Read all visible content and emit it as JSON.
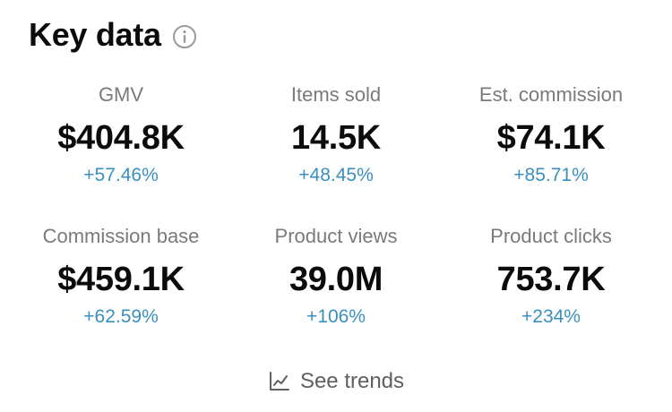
{
  "header": {
    "title": "Key data",
    "info_icon": "info-icon"
  },
  "metrics": [
    {
      "label": "GMV",
      "value": "$404.8K",
      "change": "+57.46%"
    },
    {
      "label": "Items sold",
      "value": "14.5K",
      "change": "+48.45%"
    },
    {
      "label": "Est. commission",
      "value": "$74.1K",
      "change": "+85.71%"
    },
    {
      "label": "Commission base",
      "value": "$459.1K",
      "change": "+62.59%"
    },
    {
      "label": "Product views",
      "value": "39.0M",
      "change": "+106%"
    },
    {
      "label": "Product clicks",
      "value": "753.7K",
      "change": "+234%"
    }
  ],
  "trends": {
    "label": "See trends",
    "icon": "line-chart-icon"
  },
  "colors": {
    "title": "#0b0b0b",
    "label": "#7a7a7a",
    "value": "#0b0b0b",
    "positive_change": "#3a8fbf",
    "muted_icon": "#9a9a9a",
    "link_text": "#5f5f5f"
  }
}
